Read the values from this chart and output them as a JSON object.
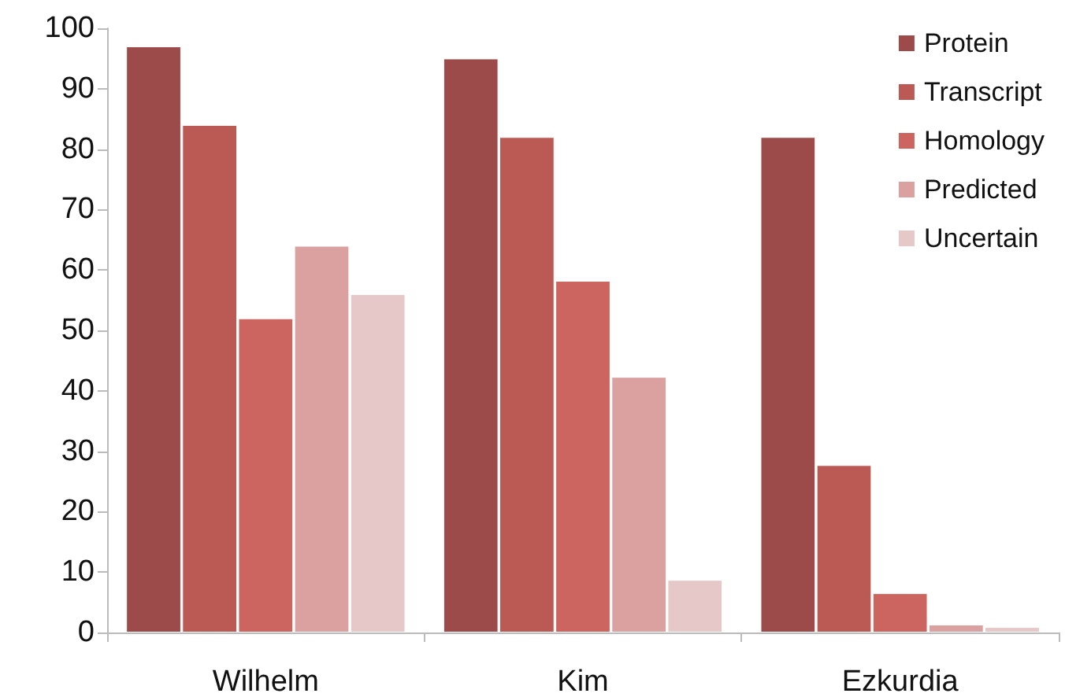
{
  "chart_data": {
    "type": "bar",
    "categories": [
      "Wilhelm",
      "Kim",
      "Ezkurdia"
    ],
    "series": [
      {
        "name": "Protein",
        "color": "#9c4a4a",
        "values": [
          97,
          95,
          82
        ]
      },
      {
        "name": "Transcript",
        "color": "#bb5a55",
        "values": [
          84,
          82,
          27.7
        ]
      },
      {
        "name": "Homology",
        "color": "#cc6560",
        "values": [
          52,
          58.2,
          6.5
        ]
      },
      {
        "name": "Predicted",
        "color": "#dba0a0",
        "values": [
          64,
          42.3,
          1.3
        ]
      },
      {
        "name": "Uncertain",
        "color": "#e6c8c8",
        "values": [
          56,
          8.7,
          0.9
        ]
      }
    ],
    "ylim": [
      0,
      100
    ],
    "yticks": [
      0,
      10,
      20,
      30,
      40,
      50,
      60,
      70,
      80,
      90,
      100
    ],
    "grid": false,
    "legend": "top right"
  }
}
